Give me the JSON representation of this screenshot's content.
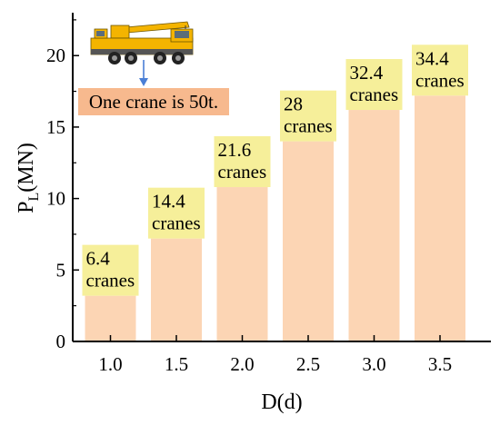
{
  "chart_data": {
    "type": "bar",
    "categories": [
      "1.0",
      "1.5",
      "2.0",
      "2.5",
      "3.0",
      "3.5"
    ],
    "values": [
      3.2,
      7.2,
      10.8,
      14.0,
      16.2,
      17.2
    ],
    "data_labels": [
      [
        "6.4",
        "cranes"
      ],
      [
        "14.4",
        "cranes"
      ],
      [
        "21.6",
        "cranes"
      ],
      [
        "28",
        "cranes"
      ],
      [
        "32.4",
        "cranes"
      ],
      [
        "34.4",
        "cranes"
      ]
    ],
    "xlabel": "D(d)",
    "ylabel_main": "P",
    "ylabel_sub": "L",
    "ylabel_unit": "(MN)",
    "ylim": [
      0,
      23
    ],
    "yticks": [
      0,
      5,
      10,
      15,
      20
    ],
    "grid": false,
    "annotation": "One crane is 50t.",
    "colors": {
      "bar": "#fcd5b4",
      "label_box": "#f6ef9a",
      "note_box": "#f7b98e",
      "arrow": "#4a7fd6"
    },
    "icon": "crane-truck-icon"
  }
}
